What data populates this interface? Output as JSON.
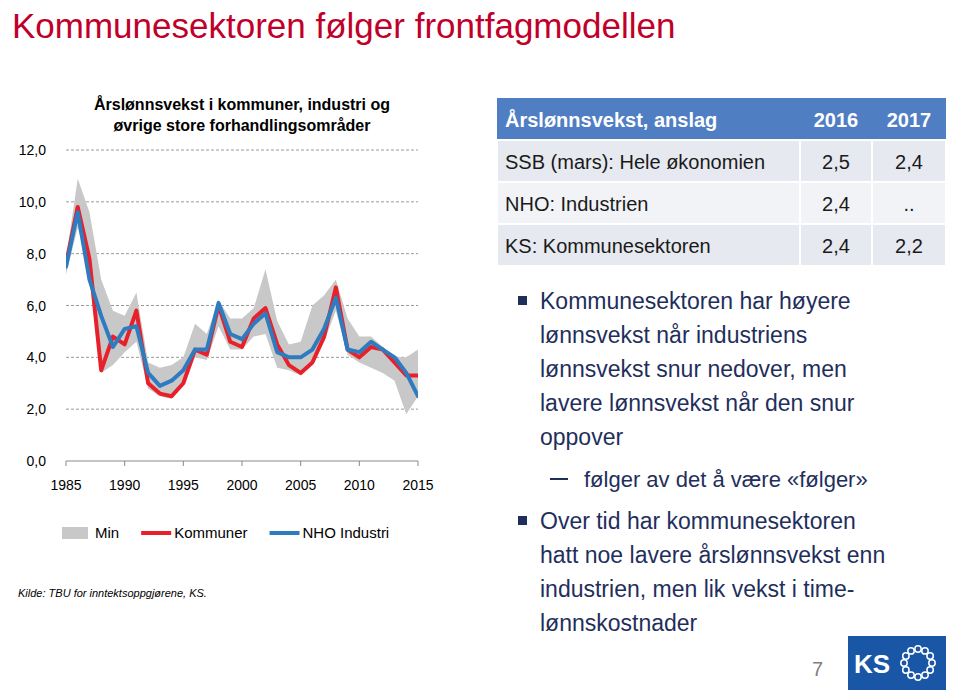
{
  "title": "Kommunesektoren følger frontfagmodellen",
  "chart_data": {
    "type": "line",
    "title": "Årslønnsvekst i kommuner, industri og øvrige store forhandlingsområder",
    "x": [
      1985,
      1986,
      1987,
      1988,
      1989,
      1990,
      1991,
      1992,
      1993,
      1994,
      1995,
      1996,
      1997,
      1998,
      1999,
      2000,
      2001,
      2002,
      2003,
      2004,
      2005,
      2006,
      2007,
      2008,
      2009,
      2010,
      2011,
      2012,
      2013,
      2014,
      2015
    ],
    "xlim": [
      1985,
      2015
    ],
    "xticks": [
      1985,
      1990,
      1995,
      2000,
      2005,
      2010,
      2015
    ],
    "ylim": [
      0,
      12
    ],
    "yticks": [
      {
        "value": 0,
        "label": "0,0"
      },
      {
        "value": 2,
        "label": "2,0"
      },
      {
        "value": 4,
        "label": "4,0"
      },
      {
        "value": 6,
        "label": "6,0"
      },
      {
        "value": 8,
        "label": "8,0"
      },
      {
        "value": 10,
        "label": "10,0"
      },
      {
        "value": 12,
        "label": "12,0"
      }
    ],
    "grid": true,
    "legend": "bottom",
    "series": [
      {
        "name": "Min",
        "type": "range",
        "color": "#c8c8c8",
        "low": [
          7.2,
          9.0,
          7.5,
          3.4,
          3.7,
          4.2,
          4.6,
          2.8,
          2.5,
          2.4,
          2.9,
          4.0,
          3.9,
          5.2,
          4.3,
          4.3,
          4.8,
          4.9,
          3.6,
          3.5,
          3.3,
          3.7,
          4.6,
          5.8,
          4.1,
          3.8,
          3.6,
          3.4,
          3.1,
          1.8,
          2.5
        ],
        "high": [
          7.8,
          10.9,
          9.6,
          7.0,
          5.8,
          5.6,
          6.5,
          3.8,
          3.6,
          3.7,
          4.0,
          5.3,
          4.9,
          6.2,
          5.5,
          5.5,
          5.9,
          7.4,
          5.4,
          4.5,
          4.6,
          6.0,
          6.4,
          7.0,
          5.5,
          4.8,
          4.8,
          4.4,
          4.0,
          4.0,
          4.3
        ]
      },
      {
        "name": "Kommuner",
        "color": "#e8202a",
        "values": [
          7.6,
          9.8,
          7.8,
          3.5,
          4.8,
          4.5,
          5.8,
          3.0,
          2.6,
          2.5,
          3.0,
          4.3,
          4.1,
          6.0,
          4.6,
          4.4,
          5.5,
          5.9,
          4.5,
          3.7,
          3.4,
          3.8,
          4.8,
          6.7,
          4.3,
          4.0,
          4.4,
          4.3,
          3.8,
          3.3,
          3.3
        ]
      },
      {
        "name": "NHO Industri",
        "color": "#2e7bbf",
        "values": [
          7.5,
          9.6,
          7.0,
          5.6,
          4.4,
          5.1,
          5.2,
          3.4,
          2.9,
          3.1,
          3.5,
          4.3,
          4.3,
          6.1,
          4.9,
          4.7,
          5.3,
          5.7,
          4.2,
          4.0,
          4.0,
          4.3,
          5.1,
          6.3,
          4.3,
          4.2,
          4.6,
          4.3,
          4.0,
          3.4,
          2.5
        ]
      }
    ]
  },
  "source": "Kilde: TBU for inntektsoppgjørene, KS.",
  "table": {
    "header": [
      "Årslønnsvekst, anslag",
      "2016",
      "2017"
    ],
    "rows": [
      [
        "SSB (mars): Hele økonomien",
        "2,5",
        "2,4"
      ],
      [
        "NHO: Industrien",
        "2,4",
        ".."
      ],
      [
        "KS: Kommunesektoren",
        "2,4",
        "2,2"
      ]
    ]
  },
  "bullets": [
    {
      "lines": [
        "Kommunesektoren har høyere",
        "lønnsvekst når industriens",
        "lønnsvekst snur nedover, men",
        "lavere lønnsvekst når den snur",
        "oppover"
      ],
      "sub": [
        {
          "lines": [
            "følger av det å være «følger»"
          ]
        }
      ]
    },
    {
      "lines": [
        "Over tid har kommunesektoren",
        "hatt noe lavere årslønnsvekst enn",
        "industrien, men lik vekst i time-",
        "lønnskostnader"
      ]
    }
  ],
  "page_number": "7",
  "logo": "KS"
}
